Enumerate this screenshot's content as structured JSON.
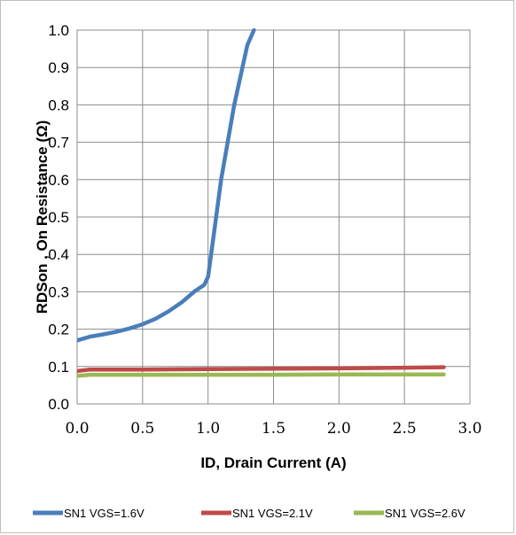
{
  "chart_data": {
    "type": "line",
    "title": "",
    "xlabel": "ID, Drain Current (A)",
    "ylabel": "RDSon , On Resistance (Ω)",
    "xlim": [
      0.0,
      3.0
    ],
    "ylim": [
      0.0,
      1.0
    ],
    "x_ticks": [
      "0.0",
      "0.5",
      "1.0",
      "1.5",
      "2.0",
      "2.5",
      "3.0"
    ],
    "y_ticks": [
      "0.0",
      "0.1",
      "0.2",
      "0.3",
      "0.4",
      "0.5",
      "0.6",
      "0.7",
      "0.8",
      "0.9",
      "1.0"
    ],
    "grid": true,
    "legend_position": "bottom",
    "series": [
      {
        "name": "SN1 VGS=1.6V",
        "color": "#4a7ebb",
        "x": [
          0.0,
          0.1,
          0.2,
          0.3,
          0.4,
          0.5,
          0.6,
          0.7,
          0.8,
          0.9,
          0.97,
          1.0,
          1.05,
          1.1,
          1.2,
          1.3,
          1.35
        ],
        "y": [
          0.17,
          0.18,
          0.186,
          0.193,
          0.202,
          0.213,
          0.228,
          0.248,
          0.272,
          0.302,
          0.318,
          0.34,
          0.47,
          0.6,
          0.8,
          0.96,
          1.0
        ]
      },
      {
        "name": "SN1 VGS=2.1V",
        "color": "#be4b48",
        "x": [
          0.0,
          0.1,
          0.5,
          1.0,
          1.5,
          2.0,
          2.5,
          2.8
        ],
        "y": [
          0.088,
          0.092,
          0.092,
          0.093,
          0.094,
          0.095,
          0.097,
          0.098
        ]
      },
      {
        "name": "SN1 VGS=2.6V",
        "color": "#98b954",
        "x": [
          0.0,
          0.1,
          0.5,
          1.0,
          1.5,
          2.0,
          2.5,
          2.8
        ],
        "y": [
          0.075,
          0.078,
          0.078,
          0.078,
          0.078,
          0.079,
          0.079,
          0.079
        ]
      }
    ]
  }
}
